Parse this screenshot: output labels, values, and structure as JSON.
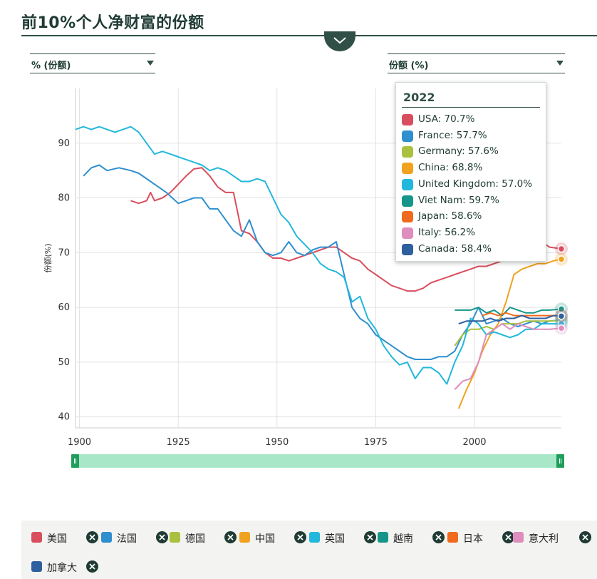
{
  "title": "前10%个人净财富的份额",
  "dropdowns": {
    "left_label": "% (份额)",
    "right_label": "份额 (%)"
  },
  "colors": {
    "usa": "#d94e5d",
    "france": "#2f8fcf",
    "germany": "#a9c13f",
    "china": "#f0a21f",
    "uk": "#22b8dc",
    "vietnam": "#16968a",
    "japan": "#f06a1e",
    "italy": "#df8cbe",
    "canada": "#2e5f9e",
    "grid": "#e2e2e2",
    "slider": "#a8e8c8",
    "slider_handle": "#1e9e5a"
  },
  "tooltip": {
    "year": "2022",
    "rows": [
      {
        "key": "usa",
        "text": "USA: 70.7%"
      },
      {
        "key": "france",
        "text": "France: 57.7%"
      },
      {
        "key": "germany",
        "text": "Germany: 57.6%"
      },
      {
        "key": "china",
        "text": "China: 68.8%"
      },
      {
        "key": "uk",
        "text": "United Kingdom: 57.0%"
      },
      {
        "key": "vietnam",
        "text": "Viet Nam: 59.7%"
      },
      {
        "key": "japan",
        "text": "Japan: 58.6%"
      },
      {
        "key": "italy",
        "text": "Italy: 56.2%"
      },
      {
        "key": "canada",
        "text": "Canada: 58.4%"
      }
    ]
  },
  "legend": [
    {
      "key": "usa",
      "label": "美国"
    },
    {
      "key": "france",
      "label": "法国"
    },
    {
      "key": "germany",
      "label": "德国"
    },
    {
      "key": "china",
      "label": "中国"
    },
    {
      "key": "uk",
      "label": "英国"
    },
    {
      "key": "vietnam",
      "label": "越南"
    },
    {
      "key": "japan",
      "label": "日本"
    },
    {
      "key": "italy",
      "label": "意大利"
    },
    {
      "key": "canada",
      "label": "加拿大"
    }
  ],
  "chart_data": {
    "type": "line",
    "title": "前10%个人净财富的份额",
    "xlabel": "",
    "ylabel": "份额(%)",
    "xlim": [
      1899,
      2022
    ],
    "ylim": [
      38,
      100
    ],
    "x_ticks": [
      1900,
      1925,
      1950,
      1975,
      2000
    ],
    "y_ticks": [
      40,
      50,
      60,
      70,
      80,
      90
    ],
    "grid": true,
    "legend_position": "bottom",
    "series": [
      {
        "key": "usa",
        "name": "美国",
        "points": [
          [
            1913,
            79.5
          ],
          [
            1915,
            79
          ],
          [
            1917,
            79.5
          ],
          [
            1918,
            81
          ],
          [
            1919,
            79.5
          ],
          [
            1921,
            80
          ],
          [
            1923,
            81
          ],
          [
            1925,
            82.5
          ],
          [
            1927,
            84
          ],
          [
            1929,
            85.3
          ],
          [
            1931,
            85.5
          ],
          [
            1933,
            84
          ],
          [
            1935,
            82
          ],
          [
            1937,
            81
          ],
          [
            1939,
            81
          ],
          [
            1941,
            74
          ],
          [
            1943,
            73.5
          ],
          [
            1945,
            72
          ],
          [
            1947,
            70
          ],
          [
            1949,
            69
          ],
          [
            1951,
            69
          ],
          [
            1953,
            68.5
          ],
          [
            1955,
            69
          ],
          [
            1957,
            69.5
          ],
          [
            1959,
            70
          ],
          [
            1961,
            70.5
          ],
          [
            1963,
            71
          ],
          [
            1965,
            71
          ],
          [
            1967,
            70
          ],
          [
            1969,
            69
          ],
          [
            1971,
            68.5
          ],
          [
            1973,
            67
          ],
          [
            1975,
            66
          ],
          [
            1977,
            65
          ],
          [
            1979,
            64
          ],
          [
            1981,
            63.5
          ],
          [
            1983,
            63
          ],
          [
            1985,
            63
          ],
          [
            1987,
            63.5
          ],
          [
            1989,
            64.5
          ],
          [
            1991,
            65
          ],
          [
            1993,
            65.5
          ],
          [
            1995,
            66
          ],
          [
            1997,
            66.5
          ],
          [
            1999,
            67
          ],
          [
            2001,
            67.5
          ],
          [
            2003,
            67.5
          ],
          [
            2005,
            68
          ],
          [
            2007,
            68.5
          ],
          [
            2009,
            69
          ],
          [
            2011,
            70
          ],
          [
            2013,
            71.5
          ],
          [
            2015,
            72.5
          ],
          [
            2017,
            72
          ],
          [
            2019,
            71
          ],
          [
            2022,
            70.7
          ]
        ]
      },
      {
        "key": "france",
        "name": "法国",
        "points": [
          [
            1901,
            84
          ],
          [
            1903,
            85.5
          ],
          [
            1905,
            86
          ],
          [
            1907,
            85
          ],
          [
            1910,
            85.5
          ],
          [
            1913,
            85
          ],
          [
            1915,
            84.5
          ],
          [
            1918,
            83
          ],
          [
            1920,
            82
          ],
          [
            1922,
            81
          ],
          [
            1925,
            79
          ],
          [
            1927,
            79.5
          ],
          [
            1929,
            80
          ],
          [
            1931,
            80
          ],
          [
            1933,
            78
          ],
          [
            1935,
            78
          ],
          [
            1937,
            76
          ],
          [
            1939,
            74
          ],
          [
            1941,
            73
          ],
          [
            1943,
            76
          ],
          [
            1945,
            72
          ],
          [
            1947,
            70
          ],
          [
            1949,
            69.5
          ],
          [
            1951,
            70
          ],
          [
            1953,
            72
          ],
          [
            1955,
            70
          ],
          [
            1957,
            69.5
          ],
          [
            1959,
            70.5
          ],
          [
            1961,
            71
          ],
          [
            1963,
            71
          ],
          [
            1965,
            72
          ],
          [
            1967,
            66
          ],
          [
            1969,
            60
          ],
          [
            1971,
            58
          ],
          [
            1973,
            57
          ],
          [
            1975,
            55
          ],
          [
            1977,
            54
          ],
          [
            1979,
            53
          ],
          [
            1981,
            52
          ],
          [
            1983,
            51
          ],
          [
            1985,
            50.5
          ],
          [
            1987,
            50.5
          ],
          [
            1989,
            50.5
          ],
          [
            1991,
            51
          ],
          [
            1993,
            51
          ],
          [
            1995,
            52
          ],
          [
            1997,
            55
          ],
          [
            1999,
            57
          ],
          [
            2001,
            60
          ],
          [
            2003,
            57
          ],
          [
            2005,
            57.5
          ],
          [
            2007,
            58
          ],
          [
            2009,
            57
          ],
          [
            2011,
            56.5
          ],
          [
            2013,
            57
          ],
          [
            2015,
            57.5
          ],
          [
            2017,
            57
          ],
          [
            2019,
            57.5
          ],
          [
            2022,
            57.7
          ]
        ]
      },
      {
        "key": "germany",
        "name": "德国",
        "points": [
          [
            1995,
            53
          ],
          [
            1997,
            55
          ],
          [
            1999,
            56
          ],
          [
            2001,
            56
          ],
          [
            2003,
            56.5
          ],
          [
            2005,
            56
          ],
          [
            2007,
            57
          ],
          [
            2009,
            57
          ],
          [
            2011,
            57
          ],
          [
            2013,
            57.5
          ],
          [
            2015,
            57.5
          ],
          [
            2017,
            57.5
          ],
          [
            2019,
            57.5
          ],
          [
            2022,
            57.6
          ]
        ]
      },
      {
        "key": "china",
        "name": "中国",
        "points": [
          [
            1996,
            41.5
          ],
          [
            1998,
            45
          ],
          [
            2000,
            48
          ],
          [
            2002,
            52
          ],
          [
            2004,
            55
          ],
          [
            2006,
            57
          ],
          [
            2008,
            61
          ],
          [
            2010,
            66
          ],
          [
            2012,
            67
          ],
          [
            2014,
            67.5
          ],
          [
            2016,
            68
          ],
          [
            2018,
            68
          ],
          [
            2020,
            68.5
          ],
          [
            2022,
            68.8
          ]
        ]
      },
      {
        "key": "uk",
        "name": "英国",
        "points": [
          [
            1899,
            92.5
          ],
          [
            1901,
            93
          ],
          [
            1903,
            92.5
          ],
          [
            1905,
            93
          ],
          [
            1907,
            92.5
          ],
          [
            1909,
            92
          ],
          [
            1911,
            92.5
          ],
          [
            1913,
            93
          ],
          [
            1915,
            92
          ],
          [
            1917,
            90
          ],
          [
            1919,
            88
          ],
          [
            1921,
            88.5
          ],
          [
            1923,
            88
          ],
          [
            1925,
            87.5
          ],
          [
            1927,
            87
          ],
          [
            1929,
            86.5
          ],
          [
            1931,
            86
          ],
          [
            1933,
            85
          ],
          [
            1935,
            85.5
          ],
          [
            1937,
            85
          ],
          [
            1939,
            84
          ],
          [
            1941,
            83
          ],
          [
            1943,
            83
          ],
          [
            1945,
            83.5
          ],
          [
            1947,
            83
          ],
          [
            1949,
            80
          ],
          [
            1951,
            77
          ],
          [
            1953,
            75.5
          ],
          [
            1955,
            73
          ],
          [
            1957,
            71.5
          ],
          [
            1959,
            70
          ],
          [
            1961,
            68
          ],
          [
            1963,
            67
          ],
          [
            1965,
            66.5
          ],
          [
            1967,
            65.5
          ],
          [
            1969,
            61
          ],
          [
            1971,
            62
          ],
          [
            1973,
            58
          ],
          [
            1975,
            56
          ],
          [
            1977,
            53
          ],
          [
            1979,
            51
          ],
          [
            1981,
            49.5
          ],
          [
            1983,
            50
          ],
          [
            1985,
            47
          ],
          [
            1987,
            49
          ],
          [
            1989,
            49
          ],
          [
            1991,
            48
          ],
          [
            1993,
            46
          ],
          [
            1995,
            50
          ],
          [
            1997,
            53
          ],
          [
            1999,
            58
          ],
          [
            2001,
            57
          ],
          [
            2003,
            55
          ],
          [
            2005,
            55.5
          ],
          [
            2007,
            55
          ],
          [
            2009,
            54.5
          ],
          [
            2011,
            55
          ],
          [
            2013,
            56
          ],
          [
            2015,
            56
          ],
          [
            2017,
            57
          ],
          [
            2019,
            57
          ],
          [
            2022,
            57.0
          ]
        ]
      },
      {
        "key": "vietnam",
        "name": "越南",
        "points": [
          [
            1995,
            59.5
          ],
          [
            1997,
            59.5
          ],
          [
            1999,
            59.5
          ],
          [
            2001,
            60
          ],
          [
            2003,
            59
          ],
          [
            2005,
            59.5
          ],
          [
            2007,
            58.5
          ],
          [
            2009,
            60
          ],
          [
            2011,
            59.5
          ],
          [
            2013,
            59
          ],
          [
            2015,
            59
          ],
          [
            2017,
            59.5
          ],
          [
            2019,
            59.5
          ],
          [
            2022,
            59.7
          ]
        ]
      },
      {
        "key": "japan",
        "name": "日本",
        "points": [
          [
            2002,
            58.5
          ],
          [
            2004,
            59
          ],
          [
            2006,
            58.5
          ],
          [
            2008,
            59
          ],
          [
            2010,
            58.5
          ],
          [
            2012,
            58.5
          ],
          [
            2014,
            58.5
          ],
          [
            2016,
            58.5
          ],
          [
            2018,
            58.5
          ],
          [
            2020,
            58.5
          ],
          [
            2022,
            58.6
          ]
        ]
      },
      {
        "key": "italy",
        "name": "意大利",
        "points": [
          [
            1995,
            45
          ],
          [
            1997,
            46.5
          ],
          [
            1999,
            47
          ],
          [
            2001,
            50
          ],
          [
            2003,
            55
          ],
          [
            2005,
            56
          ],
          [
            2007,
            57
          ],
          [
            2009,
            56
          ],
          [
            2011,
            57
          ],
          [
            2013,
            56.5
          ],
          [
            2015,
            56
          ],
          [
            2017,
            56
          ],
          [
            2019,
            56
          ],
          [
            2022,
            56.2
          ]
        ]
      },
      {
        "key": "canada",
        "name": "加拿大",
        "points": [
          [
            1996,
            57
          ],
          [
            1998,
            57.5
          ],
          [
            2000,
            57.5
          ],
          [
            2002,
            57.5
          ],
          [
            2004,
            58
          ],
          [
            2006,
            57.5
          ],
          [
            2008,
            58
          ],
          [
            2010,
            58
          ],
          [
            2012,
            58.5
          ],
          [
            2014,
            58
          ],
          [
            2016,
            58
          ],
          [
            2018,
            58
          ],
          [
            2020,
            58.5
          ],
          [
            2022,
            58.4
          ]
        ]
      }
    ]
  }
}
